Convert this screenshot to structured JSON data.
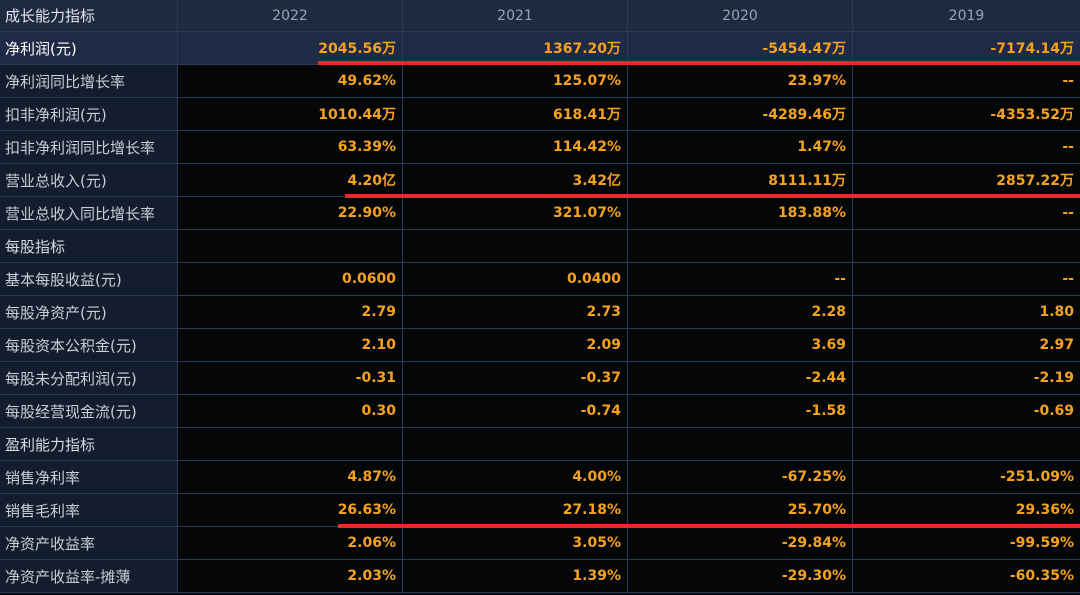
{
  "header": {
    "title": "成长能力指标",
    "years": [
      "2022",
      "2021",
      "2020",
      "2019"
    ]
  },
  "rows": [
    {
      "label": "净利润(元)",
      "values": [
        "2045.56万",
        "1367.20万",
        "-5454.47万",
        "-7174.14万"
      ],
      "highlight": true
    },
    {
      "label": "净利润同比增长率",
      "values": [
        "49.62%",
        "125.07%",
        "23.97%",
        "--"
      ]
    },
    {
      "label": "扣非净利润(元)",
      "values": [
        "1010.44万",
        "618.41万",
        "-4289.46万",
        "-4353.52万"
      ]
    },
    {
      "label": "扣非净利润同比增长率",
      "values": [
        "63.39%",
        "114.42%",
        "1.47%",
        "--"
      ]
    },
    {
      "label": "营业总收入(元)",
      "values": [
        "4.20亿",
        "3.42亿",
        "8111.11万",
        "2857.22万"
      ]
    },
    {
      "label": "营业总收入同比增长率",
      "values": [
        "22.90%",
        "321.07%",
        "183.88%",
        "--"
      ]
    },
    {
      "label": "每股指标",
      "values": [
        "",
        "",
        "",
        ""
      ],
      "section": true
    },
    {
      "label": "基本每股收益(元)",
      "values": [
        "0.0600",
        "0.0400",
        "--",
        "--"
      ]
    },
    {
      "label": "每股净资产(元)",
      "values": [
        "2.79",
        "2.73",
        "2.28",
        "1.80"
      ]
    },
    {
      "label": "每股资本公积金(元)",
      "values": [
        "2.10",
        "2.09",
        "3.69",
        "2.97"
      ]
    },
    {
      "label": "每股未分配利润(元)",
      "values": [
        "-0.31",
        "-0.37",
        "-2.44",
        "-2.19"
      ]
    },
    {
      "label": "每股经营现金流(元)",
      "values": [
        "0.30",
        "-0.74",
        "-1.58",
        "-0.69"
      ]
    },
    {
      "label": "盈利能力指标",
      "values": [
        "",
        "",
        "",
        ""
      ],
      "section": true
    },
    {
      "label": "销售净利率",
      "values": [
        "4.87%",
        "4.00%",
        "-67.25%",
        "-251.09%"
      ]
    },
    {
      "label": "销售毛利率",
      "values": [
        "26.63%",
        "27.18%",
        "25.70%",
        "29.36%"
      ]
    },
    {
      "label": "净资产收益率",
      "values": [
        "2.06%",
        "3.05%",
        "-29.84%",
        "-99.59%"
      ]
    },
    {
      "label": "净资产收益率-摊薄",
      "values": [
        "2.03%",
        "1.39%",
        "-29.30%",
        "-60.35%"
      ]
    }
  ],
  "colors": {
    "value": "#f5a21e",
    "annotation": "#e8292c",
    "header_bg": "#1d2a3f",
    "label_bg": "#131d2e",
    "grid": "#2a3b57"
  }
}
